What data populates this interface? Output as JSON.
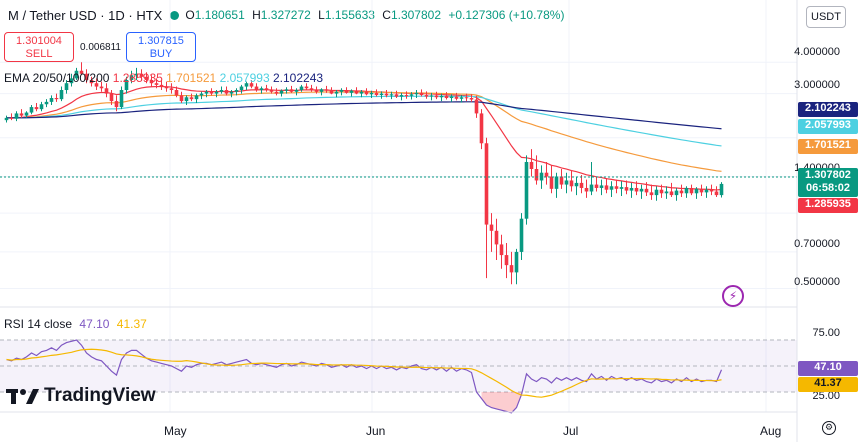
{
  "header": {
    "symbol_title": "M / Tether USD · 1D · HTX",
    "open_key": "O",
    "open": "1.180651",
    "high_key": "H",
    "high": "1.327272",
    "low_key": "L",
    "low": "1.155633",
    "close_key": "C",
    "close": "1.307802",
    "change": "+0.127306 (+10.78%)",
    "status_color": "#089981"
  },
  "currency_button": "USDT",
  "trade": {
    "sell_price": "1.301004",
    "sell_label": "SELL",
    "buy_price": "1.307815",
    "buy_label": "BUY",
    "spread": "0.006811"
  },
  "ema_legend": {
    "label": "EMA 20/50/100/200",
    "v20": "1.285935",
    "v50": "1.701521",
    "v100": "2.057993",
    "v200": "2.102243"
  },
  "rsi_legend": {
    "label": "RSI 14 close",
    "rsi": "47.10",
    "ma": "41.37"
  },
  "price_axis": [
    "4.000000",
    "3.000000",
    "1.400000",
    "0.700000",
    "0.500000"
  ],
  "price_tags": {
    "ema200": "2.102243",
    "ema100": "2.057993",
    "ema50": "1.701521",
    "last": "1.307802",
    "countdown": "06:58:02",
    "ema20": "1.285935"
  },
  "rsi_axis": [
    "75.00",
    "25.00"
  ],
  "rsi_tags": {
    "rsi": "47.10",
    "ma": "41.37"
  },
  "time_axis": [
    "May",
    "Jun",
    "Jul",
    "Aug"
  ],
  "brand": "TradingView",
  "colors": {
    "up": "#089981",
    "down": "#f23645",
    "ema20": "#f23645",
    "ema50": "#f59a3c",
    "ema100": "#4dd0e1",
    "ema200": "#1a237e",
    "rsi": "#7e57c2",
    "rsi_ma": "#f5b800"
  },
  "chart_data": {
    "type": "candlestick",
    "scale": "log",
    "ylim": [
      0.45,
      5.0
    ],
    "x": [
      "t0",
      "t1",
      "t2",
      "t3",
      "t4",
      "t5",
      "t6",
      "t7",
      "t8",
      "t9",
      "t10",
      "t11",
      "t12",
      "t13",
      "t14",
      "t15",
      "t16",
      "t17",
      "t18",
      "t19",
      "t20",
      "t21",
      "t22",
      "t23",
      "t24",
      "t25",
      "t26",
      "t27",
      "t28",
      "t29",
      "t30",
      "t31",
      "t32",
      "t33",
      "t34",
      "t35",
      "t36",
      "t37",
      "t38",
      "t39",
      "t40",
      "t41",
      "t42",
      "t43",
      "t44",
      "t45",
      "t46",
      "t47",
      "t48",
      "t49",
      "t50",
      "t51",
      "t52",
      "t53",
      "t54",
      "t55",
      "t56",
      "t57",
      "t58",
      "t59",
      "t60",
      "t61",
      "t62",
      "t63",
      "t64",
      "t65",
      "t66",
      "t67",
      "t68",
      "t69",
      "t70",
      "t71",
      "t72",
      "t73",
      "t74",
      "t75",
      "t76",
      "t77",
      "t78",
      "t79",
      "t80",
      "t81",
      "t82",
      "t83",
      "t84",
      "t85",
      "t86",
      "t87",
      "t88",
      "t89",
      "t90",
      "t91",
      "t92",
      "t93",
      "t94",
      "t95",
      "t96",
      "t97",
      "t98",
      "t99",
      "t100",
      "t101",
      "t102",
      "t103",
      "t104",
      "t105",
      "t106",
      "t107",
      "t108",
      "t109",
      "t110",
      "t111",
      "t112",
      "t113",
      "t114",
      "t115",
      "t116",
      "t117",
      "t118",
      "t119",
      "t120",
      "t121",
      "t122",
      "t123",
      "t124",
      "t125",
      "t126",
      "t127",
      "t128",
      "t129",
      "t130",
      "t131",
      "t132",
      "t133",
      "t134",
      "t135",
      "t136",
      "t137",
      "t138",
      "t139",
      "t140",
      "t141",
      "t142",
      "t143"
    ],
    "ohlc": [
      [
        2.35,
        2.45,
        2.3,
        2.4
      ],
      [
        2.4,
        2.5,
        2.35,
        2.38
      ],
      [
        2.38,
        2.55,
        2.33,
        2.5
      ],
      [
        2.5,
        2.6,
        2.4,
        2.45
      ],
      [
        2.45,
        2.55,
        2.4,
        2.52
      ],
      [
        2.52,
        2.7,
        2.48,
        2.65
      ],
      [
        2.65,
        2.75,
        2.55,
        2.6
      ],
      [
        2.6,
        2.78,
        2.55,
        2.72
      ],
      [
        2.72,
        2.85,
        2.65,
        2.78
      ],
      [
        2.78,
        2.95,
        2.7,
        2.88
      ],
      [
        2.88,
        3.0,
        2.78,
        2.85
      ],
      [
        2.85,
        3.2,
        2.8,
        3.1
      ],
      [
        3.1,
        3.4,
        3.0,
        3.3
      ],
      [
        3.3,
        3.6,
        3.2,
        3.45
      ],
      [
        3.45,
        3.8,
        3.4,
        3.7
      ],
      [
        3.7,
        4.0,
        3.55,
        3.6
      ],
      [
        3.6,
        3.75,
        3.3,
        3.4
      ],
      [
        3.4,
        3.5,
        3.2,
        3.3
      ],
      [
        3.3,
        3.45,
        3.1,
        3.2
      ],
      [
        3.2,
        3.35,
        3.05,
        3.15
      ],
      [
        3.15,
        3.3,
        2.9,
        3.0
      ],
      [
        3.0,
        3.1,
        2.7,
        2.8
      ],
      [
        2.8,
        2.95,
        2.55,
        2.65
      ],
      [
        2.65,
        3.2,
        2.6,
        3.1
      ],
      [
        3.1,
        3.5,
        3.0,
        3.4
      ],
      [
        3.4,
        3.7,
        3.3,
        3.55
      ],
      [
        3.55,
        3.8,
        3.4,
        3.6
      ],
      [
        3.6,
        3.75,
        3.4,
        3.5
      ],
      [
        3.5,
        3.65,
        3.3,
        3.4
      ],
      [
        3.4,
        3.55,
        3.2,
        3.3
      ],
      [
        3.3,
        3.45,
        3.15,
        3.25
      ],
      [
        3.25,
        3.4,
        3.1,
        3.2
      ],
      [
        3.2,
        3.35,
        3.05,
        3.15
      ],
      [
        3.15,
        3.3,
        3.0,
        3.1
      ],
      [
        3.1,
        3.2,
        2.9,
        2.95
      ],
      [
        2.95,
        3.05,
        2.75,
        2.8
      ],
      [
        2.8,
        2.95,
        2.7,
        2.9
      ],
      [
        2.9,
        3.0,
        2.8,
        2.85
      ],
      [
        2.85,
        3.0,
        2.75,
        2.95
      ],
      [
        2.95,
        3.05,
        2.85,
        3.0
      ],
      [
        3.0,
        3.1,
        2.9,
        3.05
      ],
      [
        3.05,
        3.15,
        2.95,
        3.0
      ],
      [
        3.0,
        3.1,
        2.9,
        3.05
      ],
      [
        3.05,
        3.2,
        3.0,
        3.1
      ],
      [
        3.1,
        3.2,
        2.95,
        3.0
      ],
      [
        3.0,
        3.1,
        2.9,
        3.05
      ],
      [
        3.05,
        3.15,
        2.95,
        3.1
      ],
      [
        3.1,
        3.25,
        3.0,
        3.2
      ],
      [
        3.2,
        3.35,
        3.1,
        3.3
      ],
      [
        3.3,
        3.4,
        3.15,
        3.2
      ],
      [
        3.2,
        3.3,
        3.05,
        3.1
      ],
      [
        3.1,
        3.2,
        3.0,
        3.15
      ],
      [
        3.15,
        3.25,
        3.05,
        3.1
      ],
      [
        3.1,
        3.2,
        3.0,
        3.05
      ],
      [
        3.05,
        3.15,
        2.95,
        3.0
      ],
      [
        3.0,
        3.12,
        2.92,
        3.08
      ],
      [
        3.08,
        3.18,
        3.0,
        3.12
      ],
      [
        3.12,
        3.22,
        3.02,
        3.05
      ],
      [
        3.05,
        3.15,
        2.95,
        3.1
      ],
      [
        3.1,
        3.25,
        3.05,
        3.2
      ],
      [
        3.2,
        3.3,
        3.1,
        3.15
      ],
      [
        3.15,
        3.25,
        3.05,
        3.1
      ],
      [
        3.1,
        3.2,
        3.0,
        3.05
      ],
      [
        3.05,
        3.15,
        2.95,
        3.12
      ],
      [
        3.12,
        3.22,
        3.02,
        3.08
      ],
      [
        3.08,
        3.18,
        2.98,
        3.0
      ],
      [
        3.0,
        3.1,
        2.9,
        3.05
      ],
      [
        3.05,
        3.15,
        2.95,
        3.1
      ],
      [
        3.1,
        3.18,
        3.0,
        3.02
      ],
      [
        3.02,
        3.12,
        2.92,
        3.08
      ],
      [
        3.08,
        3.18,
        2.98,
        3.0
      ],
      [
        3.0,
        3.1,
        2.9,
        3.05
      ],
      [
        3.05,
        3.15,
        2.95,
        2.98
      ],
      [
        2.98,
        3.08,
        2.88,
        3.02
      ],
      [
        3.02,
        3.12,
        2.92,
        2.96
      ],
      [
        2.96,
        3.06,
        2.86,
        3.0
      ],
      [
        3.0,
        3.1,
        2.9,
        2.95
      ],
      [
        2.95,
        3.05,
        2.85,
        2.98
      ],
      [
        2.98,
        3.08,
        2.88,
        2.92
      ],
      [
        2.92,
        3.02,
        2.82,
        2.96
      ],
      [
        2.96,
        3.06,
        2.86,
        2.94
      ],
      [
        2.94,
        3.04,
        2.84,
        2.98
      ],
      [
        2.98,
        3.1,
        2.88,
        3.02
      ],
      [
        3.02,
        3.12,
        2.92,
        2.96
      ],
      [
        2.96,
        3.06,
        2.86,
        2.92
      ],
      [
        2.92,
        3.02,
        2.82,
        2.95
      ],
      [
        2.95,
        3.05,
        2.85,
        2.9
      ],
      [
        2.9,
        3.0,
        2.8,
        2.94
      ],
      [
        2.94,
        3.04,
        2.84,
        2.88
      ],
      [
        2.88,
        2.98,
        2.78,
        2.92
      ],
      [
        2.92,
        3.02,
        2.82,
        2.86
      ],
      [
        2.86,
        2.96,
        2.76,
        2.9
      ],
      [
        2.9,
        3.0,
        2.8,
        2.88
      ],
      [
        2.88,
        2.98,
        2.78,
        2.84
      ],
      [
        2.84,
        2.94,
        2.4,
        2.5
      ],
      [
        2.5,
        2.6,
        1.8,
        1.9
      ],
      [
        1.9,
        2.0,
        0.55,
        0.9
      ],
      [
        0.9,
        1.0,
        0.7,
        0.85
      ],
      [
        0.85,
        0.95,
        0.65,
        0.75
      ],
      [
        0.75,
        0.82,
        0.6,
        0.68
      ],
      [
        0.68,
        0.76,
        0.55,
        0.62
      ],
      [
        0.62,
        0.7,
        0.52,
        0.58
      ],
      [
        0.58,
        0.72,
        0.52,
        0.7
      ],
      [
        0.7,
        1.0,
        0.65,
        0.95
      ],
      [
        0.95,
        1.7,
        0.9,
        1.6
      ],
      [
        1.6,
        1.8,
        1.4,
        1.5
      ],
      [
        1.5,
        1.7,
        1.3,
        1.35
      ],
      [
        1.35,
        1.55,
        1.25,
        1.45
      ],
      [
        1.45,
        1.6,
        1.3,
        1.4
      ],
      [
        1.4,
        1.55,
        1.2,
        1.25
      ],
      [
        1.25,
        1.45,
        1.15,
        1.4
      ],
      [
        1.4,
        1.5,
        1.25,
        1.3
      ],
      [
        1.3,
        1.45,
        1.2,
        1.35
      ],
      [
        1.35,
        1.48,
        1.22,
        1.28
      ],
      [
        1.28,
        1.4,
        1.18,
        1.32
      ],
      [
        1.32,
        1.42,
        1.2,
        1.26
      ],
      [
        1.26,
        1.36,
        1.15,
        1.22
      ],
      [
        1.22,
        1.6,
        1.18,
        1.3
      ],
      [
        1.3,
        1.4,
        1.22,
        1.26
      ],
      [
        1.26,
        1.36,
        1.18,
        1.29
      ],
      [
        1.29,
        1.38,
        1.2,
        1.24
      ],
      [
        1.24,
        1.34,
        1.16,
        1.28
      ],
      [
        1.28,
        1.36,
        1.2,
        1.25
      ],
      [
        1.25,
        1.34,
        1.17,
        1.27
      ],
      [
        1.27,
        1.35,
        1.19,
        1.23
      ],
      [
        1.23,
        1.32,
        1.15,
        1.26
      ],
      [
        1.26,
        1.34,
        1.18,
        1.22
      ],
      [
        1.22,
        1.3,
        1.14,
        1.25
      ],
      [
        1.25,
        1.33,
        1.17,
        1.21
      ],
      [
        1.21,
        1.3,
        1.13,
        1.18
      ],
      [
        1.18,
        1.28,
        1.12,
        1.24
      ],
      [
        1.24,
        1.3,
        1.15,
        1.2
      ],
      [
        1.2,
        1.28,
        1.14,
        1.22
      ],
      [
        1.22,
        1.32,
        1.16,
        1.18
      ],
      [
        1.18,
        1.26,
        1.12,
        1.23
      ],
      [
        1.23,
        1.3,
        1.16,
        1.2
      ],
      [
        1.2,
        1.28,
        1.15,
        1.26
      ],
      [
        1.26,
        1.3,
        1.18,
        1.2
      ],
      [
        1.2,
        1.27,
        1.14,
        1.25
      ],
      [
        1.25,
        1.3,
        1.17,
        1.21
      ],
      [
        1.21,
        1.28,
        1.15,
        1.24
      ],
      [
        1.24,
        1.3,
        1.18,
        1.22
      ],
      [
        1.22,
        1.28,
        1.16,
        1.18
      ],
      [
        1.18,
        1.33,
        1.155,
        1.307802
      ]
    ],
    "rsi": [
      55,
      54,
      56,
      55,
      57,
      60,
      58,
      61,
      62,
      64,
      62,
      66,
      68,
      69,
      70,
      66,
      60,
      57,
      55,
      54,
      50,
      46,
      43,
      55,
      60,
      62,
      62,
      59,
      56,
      54,
      53,
      52,
      51,
      50,
      48,
      46,
      50,
      49,
      51,
      52,
      52,
      51,
      52,
      53,
      51,
      52,
      53,
      54,
      55,
      52,
      51,
      52,
      51,
      50,
      49,
      51,
      52,
      50,
      51,
      53,
      52,
      51,
      50,
      52,
      51,
      49,
      50,
      51,
      49,
      51,
      49,
      50,
      48,
      50,
      48,
      50,
      48,
      49,
      47,
      49,
      48,
      50,
      51,
      48,
      47,
      49,
      47,
      49,
      46,
      49,
      46,
      48,
      47,
      45,
      30,
      25,
      20,
      18,
      17,
      16,
      15,
      14,
      18,
      28,
      44,
      40,
      38,
      41,
      40,
      37,
      41,
      39,
      41,
      39,
      41,
      39,
      38,
      44,
      40,
      42,
      39,
      42,
      40,
      41,
      39,
      41,
      39,
      40,
      38,
      37,
      40,
      38,
      39,
      37,
      40,
      38,
      41,
      38,
      40,
      38,
      39,
      39,
      38,
      47.1
    ]
  }
}
